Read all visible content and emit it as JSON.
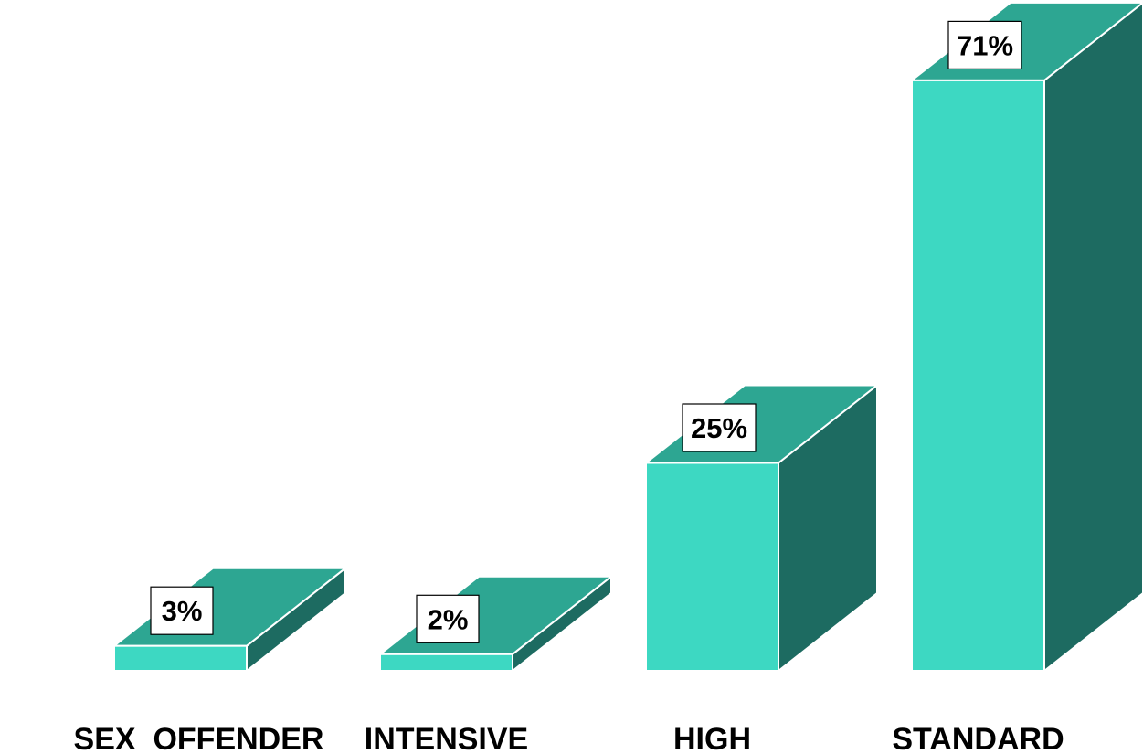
{
  "chart_data": {
    "type": "bar",
    "categories": [
      "SEX  OFFENDER",
      "INTENSIVE",
      "HIGH",
      "STANDARD"
    ],
    "values": [
      3,
      2,
      25,
      71
    ],
    "value_labels": [
      "3%",
      "2%",
      "25%",
      "71%"
    ],
    "title": "",
    "xlabel": "",
    "ylabel": "",
    "ylim": [
      0,
      100
    ],
    "grid": false,
    "legend": "none",
    "style": "3d"
  },
  "colors": {
    "front": "#3dd8c2",
    "top": "#2da692",
    "side": "#1d6b61",
    "edge": "#ffffff"
  }
}
